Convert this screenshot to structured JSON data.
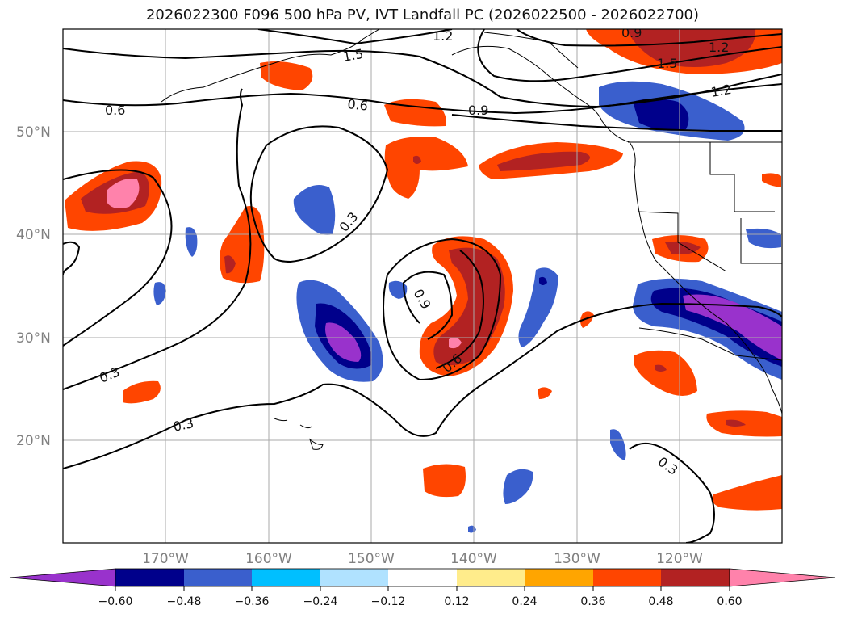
{
  "title": "2026022300 F096 500 hPa PV, IVT Landfall PC (2026022500 - 2026022700)",
  "map": {
    "lat_ticks": [
      "50°N",
      "40°N",
      "30°N",
      "20°N"
    ],
    "lon_ticks": [
      "170°W",
      "160°W",
      "150°W",
      "140°W",
      "130°W",
      "120°W"
    ],
    "contour_labels": [
      "1.2",
      "1.5",
      "0.9",
      "1.5",
      "1.2",
      "0.6",
      "0.6",
      "0.9",
      "1.2",
      "0.3",
      "0.9",
      "0.6",
      "0.3",
      "0.3",
      "0.3"
    ]
  },
  "colorbar": {
    "ticks": [
      "−0.60",
      "−0.48",
      "−0.36",
      "−0.24",
      "−0.12",
      "0.12",
      "0.24",
      "0.36",
      "0.48",
      "0.60"
    ],
    "colors": [
      "#9932cc",
      "#00008b",
      "#3a5fcd",
      "#00bfff",
      "#b0e2ff",
      "#ffffff",
      "#ffec8b",
      "#ffa500",
      "#ff4500",
      "#b22222",
      "#ff82ab"
    ]
  },
  "colors": {
    "frame": "#000000",
    "grid": "#aaaaaa",
    "contour": "#000000"
  }
}
